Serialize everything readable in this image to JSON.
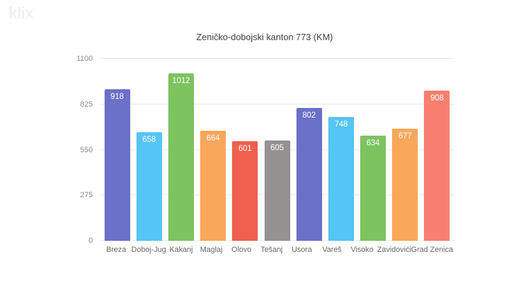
{
  "watermark": {
    "text": "klix"
  },
  "colors": {
    "background": "#ffffff",
    "gridline": "#e9e9e9",
    "axis_text": "#8c8c8c",
    "category_text": "#666666",
    "title_text": "#3d3d3d",
    "value_label": "#ffffff",
    "watermark": "#f1f1f1"
  },
  "chart_data": {
    "type": "bar",
    "title": "Zeničko-dobojski kanton 773 (KM)",
    "xlabel": "",
    "ylabel": "",
    "categories": [
      "Breza",
      "Doboj-Jug",
      "Kakanj",
      "Maglaj",
      "Olovo",
      "Tešanj",
      "Usora",
      "Vareš",
      "Visoko",
      "Zavidovići",
      "Grad Zenica"
    ],
    "values": [
      918,
      658,
      1012,
      664,
      601,
      605,
      802,
      748,
      634,
      677,
      908
    ],
    "bar_colors": [
      "#6b70c8",
      "#55c5f3",
      "#7dc360",
      "#f9a75a",
      "#ef604f",
      "#949190",
      "#6b70c8",
      "#55c5f3",
      "#7dc360",
      "#f9a75a",
      "#f87f6f"
    ],
    "y_ticks": [
      0,
      275,
      550,
      825,
      1100
    ],
    "ylim": [
      0,
      1100
    ],
    "grid": true,
    "legend": "none",
    "value_labels_position": "inside-top"
  }
}
